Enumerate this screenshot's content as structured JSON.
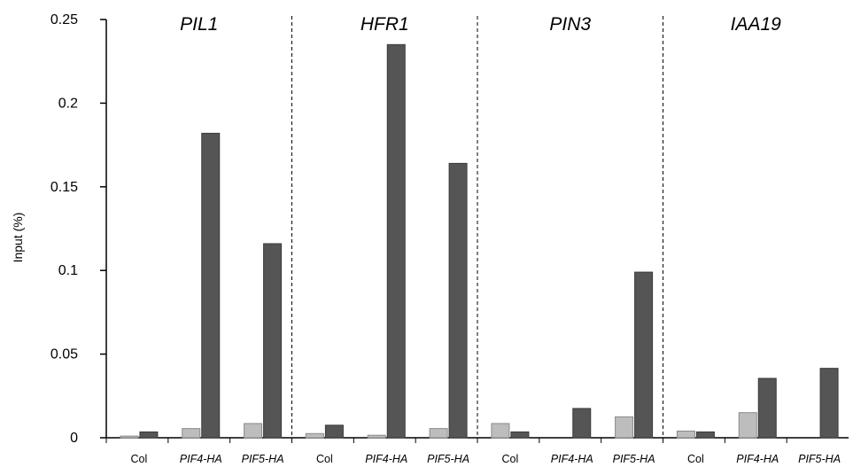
{
  "chart_data": {
    "type": "bar",
    "ylabel": "Input (%)",
    "ylim": [
      0,
      0.25
    ],
    "yticks": [
      "0",
      "0.05",
      "0.1",
      "0.15",
      "0.2",
      "0.25"
    ],
    "ytick_values": [
      0,
      0.05,
      0.1,
      0.15,
      0.2,
      0.25
    ],
    "groups": [
      {
        "gene": "PIL1",
        "categories": [
          {
            "label": "Col",
            "values": [
              0.001,
              0.0035
            ]
          },
          {
            "label": "PIF4-HA",
            "values": [
              0.0055,
              0.182
            ]
          },
          {
            "label": "PIF5-HA",
            "values": [
              0.0085,
              0.116
            ]
          }
        ]
      },
      {
        "gene": "HFR1",
        "categories": [
          {
            "label": "Col",
            "values": [
              0.0025,
              0.0075
            ]
          },
          {
            "label": "PIF4-HA",
            "values": [
              0.0015,
              0.235
            ]
          },
          {
            "label": "PIF5-HA",
            "values": [
              0.0055,
              0.164
            ]
          }
        ]
      },
      {
        "gene": "PIN3",
        "categories": [
          {
            "label": "Col",
            "values": [
              0.0085,
              0.0035
            ]
          },
          {
            "label": "PIF4-HA",
            "values": [
              0.0,
              0.0175
            ]
          },
          {
            "label": "PIF5-HA",
            "values": [
              0.0125,
              0.099
            ]
          }
        ]
      },
      {
        "gene": "IAA19",
        "categories": [
          {
            "label": "Col",
            "values": [
              0.004,
              0.0035
            ]
          },
          {
            "label": "PIF4-HA",
            "values": [
              0.015,
              0.0355
            ]
          },
          {
            "label": "PIF5-HA",
            "values": [
              0.0,
              0.0415
            ]
          }
        ]
      }
    ],
    "series_colors": [
      "#bdbdbd",
      "#555555"
    ],
    "grid": false
  }
}
